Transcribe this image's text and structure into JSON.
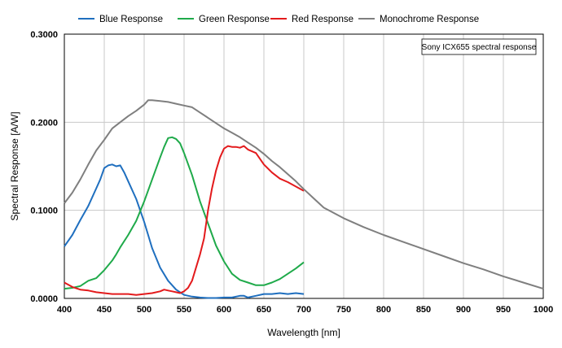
{
  "chart_data": {
    "type": "line",
    "title": "",
    "annotation": "Sony ICX655 spectral response",
    "xlabel": "Wavelength [nm]",
    "ylabel": "Spectral Response [A/W]",
    "xlim": [
      400,
      1000
    ],
    "ylim": [
      0,
      0.3
    ],
    "xticks": [
      400,
      450,
      500,
      550,
      600,
      650,
      700,
      750,
      800,
      850,
      900,
      950,
      1000
    ],
    "yticks": [
      0,
      0.1,
      0.2,
      0.3
    ],
    "ytick_labels": [
      "0.0000",
      "0.1000",
      "0.2000",
      "0.3000"
    ],
    "grid": true,
    "legend_position": "top",
    "series": [
      {
        "name": "Blue Response",
        "color": "#1f6fbf",
        "points": [
          [
            400,
            0.059
          ],
          [
            410,
            0.072
          ],
          [
            420,
            0.089
          ],
          [
            430,
            0.105
          ],
          [
            440,
            0.125
          ],
          [
            445,
            0.135
          ],
          [
            450,
            0.148
          ],
          [
            455,
            0.151
          ],
          [
            460,
            0.152
          ],
          [
            465,
            0.15
          ],
          [
            470,
            0.151
          ],
          [
            475,
            0.143
          ],
          [
            480,
            0.133
          ],
          [
            490,
            0.113
          ],
          [
            500,
            0.087
          ],
          [
            505,
            0.072
          ],
          [
            510,
            0.057
          ],
          [
            520,
            0.035
          ],
          [
            530,
            0.02
          ],
          [
            540,
            0.01
          ],
          [
            550,
            0.004
          ],
          [
            560,
            0.002
          ],
          [
            570,
            0.001
          ],
          [
            580,
            0.0005
          ],
          [
            590,
            0.0005
          ],
          [
            600,
            0.001
          ],
          [
            610,
            0.001
          ],
          [
            620,
            0.003
          ],
          [
            625,
            0.003
          ],
          [
            630,
            0.001
          ],
          [
            640,
            0.003
          ],
          [
            650,
            0.005
          ],
          [
            660,
            0.005
          ],
          [
            670,
            0.006
          ],
          [
            680,
            0.005
          ],
          [
            690,
            0.006
          ],
          [
            700,
            0.005
          ]
        ]
      },
      {
        "name": "Green Response",
        "color": "#1faa4a",
        "points": [
          [
            400,
            0.011
          ],
          [
            410,
            0.012
          ],
          [
            420,
            0.014
          ],
          [
            430,
            0.02
          ],
          [
            440,
            0.023
          ],
          [
            450,
            0.032
          ],
          [
            460,
            0.043
          ],
          [
            465,
            0.05
          ],
          [
            470,
            0.058
          ],
          [
            480,
            0.072
          ],
          [
            490,
            0.088
          ],
          [
            500,
            0.11
          ],
          [
            510,
            0.135
          ],
          [
            520,
            0.16
          ],
          [
            525,
            0.172
          ],
          [
            530,
            0.182
          ],
          [
            535,
            0.183
          ],
          [
            540,
            0.181
          ],
          [
            545,
            0.176
          ],
          [
            550,
            0.165
          ],
          [
            560,
            0.14
          ],
          [
            570,
            0.11
          ],
          [
            580,
            0.085
          ],
          [
            590,
            0.06
          ],
          [
            600,
            0.042
          ],
          [
            610,
            0.028
          ],
          [
            620,
            0.021
          ],
          [
            630,
            0.018
          ],
          [
            640,
            0.015
          ],
          [
            650,
            0.015
          ],
          [
            660,
            0.018
          ],
          [
            670,
            0.022
          ],
          [
            680,
            0.028
          ],
          [
            690,
            0.034
          ],
          [
            700,
            0.041
          ]
        ]
      },
      {
        "name": "Red Response",
        "color": "#e31a1c",
        "points": [
          [
            400,
            0.018
          ],
          [
            410,
            0.013
          ],
          [
            420,
            0.01
          ],
          [
            430,
            0.009
          ],
          [
            440,
            0.007
          ],
          [
            450,
            0.006
          ],
          [
            460,
            0.005
          ],
          [
            470,
            0.005
          ],
          [
            480,
            0.005
          ],
          [
            490,
            0.004
          ],
          [
            500,
            0.005
          ],
          [
            510,
            0.006
          ],
          [
            520,
            0.008
          ],
          [
            525,
            0.01
          ],
          [
            530,
            0.009
          ],
          [
            535,
            0.008
          ],
          [
            540,
            0.007
          ],
          [
            545,
            0.006
          ],
          [
            550,
            0.008
          ],
          [
            555,
            0.012
          ],
          [
            560,
            0.02
          ],
          [
            570,
            0.05
          ],
          [
            575,
            0.068
          ],
          [
            580,
            0.1
          ],
          [
            585,
            0.125
          ],
          [
            590,
            0.145
          ],
          [
            595,
            0.16
          ],
          [
            600,
            0.17
          ],
          [
            605,
            0.173
          ],
          [
            610,
            0.172
          ],
          [
            615,
            0.172
          ],
          [
            620,
            0.171
          ],
          [
            625,
            0.173
          ],
          [
            630,
            0.169
          ],
          [
            640,
            0.165
          ],
          [
            650,
            0.152
          ],
          [
            660,
            0.143
          ],
          [
            670,
            0.136
          ],
          [
            680,
            0.132
          ],
          [
            690,
            0.127
          ],
          [
            700,
            0.122
          ]
        ]
      },
      {
        "name": "Monochrome Response",
        "color": "#7f7f7f",
        "points": [
          [
            400,
            0.108
          ],
          [
            410,
            0.12
          ],
          [
            420,
            0.135
          ],
          [
            430,
            0.152
          ],
          [
            440,
            0.168
          ],
          [
            450,
            0.18
          ],
          [
            460,
            0.193
          ],
          [
            470,
            0.2
          ],
          [
            480,
            0.207
          ],
          [
            490,
            0.213
          ],
          [
            500,
            0.22
          ],
          [
            505,
            0.225
          ],
          [
            510,
            0.225
          ],
          [
            520,
            0.224
          ],
          [
            530,
            0.223
          ],
          [
            540,
            0.221
          ],
          [
            550,
            0.219
          ],
          [
            560,
            0.217
          ],
          [
            570,
            0.211
          ],
          [
            580,
            0.205
          ],
          [
            590,
            0.199
          ],
          [
            600,
            0.193
          ],
          [
            610,
            0.188
          ],
          [
            620,
            0.183
          ],
          [
            630,
            0.177
          ],
          [
            640,
            0.171
          ],
          [
            650,
            0.164
          ],
          [
            660,
            0.156
          ],
          [
            670,
            0.149
          ],
          [
            680,
            0.141
          ],
          [
            690,
            0.133
          ],
          [
            700,
            0.124
          ],
          [
            725,
            0.103
          ],
          [
            750,
            0.091
          ],
          [
            775,
            0.081
          ],
          [
            800,
            0.072
          ],
          [
            825,
            0.064
          ],
          [
            850,
            0.056
          ],
          [
            875,
            0.048
          ],
          [
            900,
            0.04
          ],
          [
            925,
            0.033
          ],
          [
            950,
            0.025
          ],
          [
            975,
            0.018
          ],
          [
            1000,
            0.011
          ]
        ]
      }
    ]
  }
}
